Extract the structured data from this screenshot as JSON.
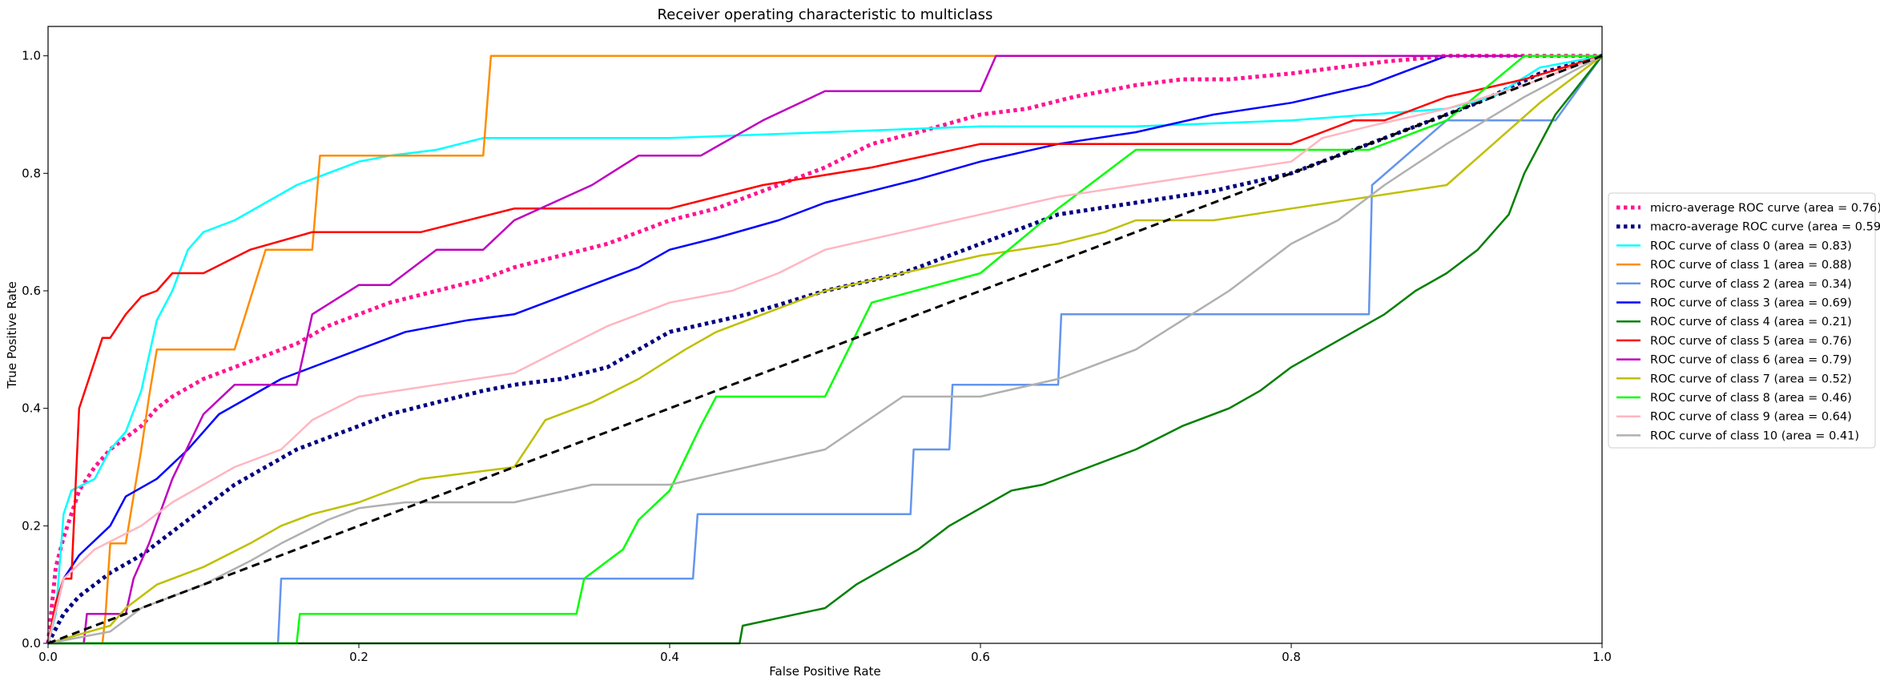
{
  "chart_data": {
    "type": "line",
    "title": "Receiver operating characteristic to multiclass",
    "xlabel": "False Positive Rate",
    "ylabel": "True Positive Rate",
    "xlim": [
      0,
      1
    ],
    "ylim": [
      0,
      1.05
    ],
    "xticks": [
      "0.0",
      "0.2",
      "0.4",
      "0.6",
      "0.8",
      "1.0"
    ],
    "yticks": [
      "0.0",
      "0.2",
      "0.4",
      "0.6",
      "0.8",
      "1.0"
    ],
    "legend_position": "right",
    "grid": false,
    "series": [
      {
        "name": "micro-average ROC curve (area = 0.76)",
        "color": "#ff1493",
        "style": "dotted",
        "width": 5,
        "x": [
          0,
          0.005,
          0.01,
          0.015,
          0.02,
          0.03,
          0.04,
          0.05,
          0.06,
          0.07,
          0.08,
          0.1,
          0.12,
          0.14,
          0.16,
          0.18,
          0.2,
          0.22,
          0.25,
          0.28,
          0.3,
          0.33,
          0.36,
          0.4,
          0.43,
          0.46,
          0.5,
          0.53,
          0.56,
          0.6,
          0.63,
          0.66,
          0.7,
          0.73,
          0.76,
          0.8,
          0.83,
          0.86,
          0.9,
          0.93,
          0.96,
          1.0
        ],
        "y": [
          0,
          0.13,
          0.18,
          0.22,
          0.26,
          0.3,
          0.33,
          0.35,
          0.37,
          0.4,
          0.42,
          0.45,
          0.47,
          0.49,
          0.51,
          0.54,
          0.56,
          0.58,
          0.6,
          0.62,
          0.64,
          0.66,
          0.68,
          0.72,
          0.74,
          0.77,
          0.81,
          0.85,
          0.87,
          0.9,
          0.91,
          0.93,
          0.95,
          0.96,
          0.96,
          0.97,
          0.98,
          0.99,
          1.0,
          1.0,
          1.0,
          1.0
        ]
      },
      {
        "name": "macro-average ROC curve (area = 0.59)",
        "color": "#000080",
        "style": "dotted",
        "width": 5,
        "x": [
          0,
          0.01,
          0.02,
          0.04,
          0.06,
          0.08,
          0.1,
          0.12,
          0.14,
          0.16,
          0.2,
          0.22,
          0.25,
          0.28,
          0.3,
          0.33,
          0.36,
          0.4,
          0.45,
          0.5,
          0.55,
          0.58,
          0.62,
          0.65,
          0.7,
          0.75,
          0.8,
          0.85,
          0.88,
          0.92,
          0.96,
          1.0
        ],
        "y": [
          0,
          0.05,
          0.08,
          0.12,
          0.15,
          0.19,
          0.23,
          0.27,
          0.3,
          0.33,
          0.37,
          0.39,
          0.41,
          0.43,
          0.44,
          0.45,
          0.47,
          0.53,
          0.56,
          0.6,
          0.63,
          0.66,
          0.7,
          0.73,
          0.75,
          0.77,
          0.8,
          0.85,
          0.88,
          0.92,
          0.97,
          1.0
        ]
      },
      {
        "name": "ROC curve of class 0 (area = 0.83)",
        "color": "#00ffff",
        "style": "solid",
        "width": 2.5,
        "x": [
          0,
          0.005,
          0.01,
          0.015,
          0.03,
          0.04,
          0.05,
          0.06,
          0.07,
          0.08,
          0.09,
          0.1,
          0.12,
          0.14,
          0.16,
          0.18,
          0.2,
          0.22,
          0.25,
          0.28,
          0.3,
          0.35,
          0.4,
          0.5,
          0.6,
          0.7,
          0.8,
          0.85,
          0.9,
          0.93,
          0.96,
          1.0
        ],
        "y": [
          0,
          0.05,
          0.22,
          0.26,
          0.28,
          0.33,
          0.36,
          0.43,
          0.55,
          0.6,
          0.67,
          0.7,
          0.72,
          0.75,
          0.78,
          0.8,
          0.82,
          0.83,
          0.84,
          0.86,
          0.86,
          0.86,
          0.86,
          0.87,
          0.88,
          0.88,
          0.89,
          0.9,
          0.91,
          0.93,
          0.98,
          1.0
        ]
      },
      {
        "name": "ROC curve of class 1 (area = 0.88)",
        "color": "#ff8c00",
        "style": "solid",
        "width": 2.5,
        "x": [
          0,
          0.035,
          0.037,
          0.04,
          0.05,
          0.06,
          0.065,
          0.07,
          0.1,
          0.12,
          0.14,
          0.17,
          0.175,
          0.2,
          0.22,
          0.25,
          0.28,
          0.285,
          0.5,
          0.7,
          0.9,
          1.0
        ],
        "y": [
          0,
          0,
          0.05,
          0.17,
          0.17,
          0.33,
          0.42,
          0.5,
          0.5,
          0.5,
          0.67,
          0.67,
          0.83,
          0.83,
          0.83,
          0.83,
          0.83,
          1.0,
          1.0,
          1.0,
          1.0,
          1.0
        ]
      },
      {
        "name": "ROC curve of class 2 (area = 0.34)",
        "color": "#6495ed",
        "style": "solid",
        "width": 2.5,
        "x": [
          0,
          0.148,
          0.15,
          0.3,
          0.415,
          0.418,
          0.54,
          0.555,
          0.557,
          0.58,
          0.582,
          0.65,
          0.652,
          0.85,
          0.852,
          0.9,
          0.95,
          0.97,
          1.0
        ],
        "y": [
          0,
          0,
          0.11,
          0.11,
          0.11,
          0.22,
          0.22,
          0.22,
          0.33,
          0.33,
          0.44,
          0.44,
          0.56,
          0.56,
          0.78,
          0.89,
          0.89,
          0.89,
          1.0
        ]
      },
      {
        "name": "ROC curve of class 3 (area = 0.69)",
        "color": "#0000ff",
        "style": "solid",
        "width": 2.5,
        "x": [
          0,
          0.01,
          0.02,
          0.04,
          0.05,
          0.07,
          0.09,
          0.11,
          0.13,
          0.15,
          0.18,
          0.2,
          0.23,
          0.27,
          0.3,
          0.32,
          0.35,
          0.38,
          0.4,
          0.43,
          0.47,
          0.5,
          0.53,
          0.56,
          0.6,
          0.65,
          0.7,
          0.75,
          0.8,
          0.85,
          0.88,
          0.9,
          1.0
        ],
        "y": [
          0,
          0.11,
          0.15,
          0.2,
          0.25,
          0.28,
          0.33,
          0.39,
          0.42,
          0.45,
          0.48,
          0.5,
          0.53,
          0.55,
          0.56,
          0.58,
          0.61,
          0.64,
          0.67,
          0.69,
          0.72,
          0.75,
          0.77,
          0.79,
          0.82,
          0.85,
          0.87,
          0.9,
          0.92,
          0.95,
          0.98,
          1.0,
          1.0
        ]
      },
      {
        "name": "ROC curve of class 4 (area = 0.21)",
        "color": "#008000",
        "style": "solid",
        "width": 2.5,
        "x": [
          0,
          0.445,
          0.447,
          0.5,
          0.52,
          0.54,
          0.56,
          0.58,
          0.6,
          0.62,
          0.64,
          0.67,
          0.7,
          0.73,
          0.76,
          0.78,
          0.8,
          0.82,
          0.84,
          0.86,
          0.88,
          0.9,
          0.92,
          0.94,
          0.95,
          0.96,
          0.97,
          1.0
        ],
        "y": [
          0,
          0,
          0.03,
          0.06,
          0.1,
          0.13,
          0.16,
          0.2,
          0.23,
          0.26,
          0.27,
          0.3,
          0.33,
          0.37,
          0.4,
          0.43,
          0.47,
          0.5,
          0.53,
          0.56,
          0.6,
          0.63,
          0.67,
          0.73,
          0.8,
          0.85,
          0.9,
          1.0
        ]
      },
      {
        "name": "ROC curve of class 5 (area = 0.76)",
        "color": "#ff0000",
        "style": "solid",
        "width": 2.5,
        "x": [
          0,
          0.005,
          0.01,
          0.015,
          0.02,
          0.03,
          0.035,
          0.04,
          0.05,
          0.06,
          0.07,
          0.08,
          0.1,
          0.13,
          0.17,
          0.21,
          0.24,
          0.3,
          0.4,
          0.46,
          0.53,
          0.6,
          0.7,
          0.8,
          0.84,
          0.86,
          0.9,
          0.95,
          1.0
        ],
        "y": [
          0,
          0.07,
          0.11,
          0.11,
          0.4,
          0.48,
          0.52,
          0.52,
          0.56,
          0.59,
          0.6,
          0.63,
          0.63,
          0.67,
          0.7,
          0.7,
          0.7,
          0.74,
          0.74,
          0.78,
          0.81,
          0.85,
          0.85,
          0.85,
          0.89,
          0.89,
          0.93,
          0.96,
          1.0
        ]
      },
      {
        "name": "ROC curve of class 6 (area = 0.79)",
        "color": "#bf00bf",
        "style": "solid",
        "width": 2.5,
        "x": [
          0,
          0.023,
          0.025,
          0.05,
          0.055,
          0.065,
          0.08,
          0.1,
          0.12,
          0.16,
          0.17,
          0.2,
          0.22,
          0.25,
          0.28,
          0.3,
          0.35,
          0.38,
          0.42,
          0.46,
          0.5,
          0.55,
          0.6,
          0.61,
          0.7,
          0.8,
          0.88,
          1.0
        ],
        "y": [
          0,
          0,
          0.05,
          0.05,
          0.11,
          0.17,
          0.28,
          0.39,
          0.44,
          0.44,
          0.56,
          0.61,
          0.61,
          0.67,
          0.67,
          0.72,
          0.78,
          0.83,
          0.83,
          0.89,
          0.94,
          0.94,
          0.94,
          1.0,
          1.0,
          1.0,
          1.0,
          1.0
        ]
      },
      {
        "name": "ROC curve of class 7 (area = 0.52)",
        "color": "#bfbf00",
        "style": "solid",
        "width": 2.5,
        "x": [
          0,
          0.04,
          0.05,
          0.07,
          0.1,
          0.13,
          0.15,
          0.17,
          0.2,
          0.24,
          0.3,
          0.31,
          0.32,
          0.35,
          0.38,
          0.41,
          0.43,
          0.46,
          0.5,
          0.55,
          0.6,
          0.65,
          0.68,
          0.7,
          0.75,
          0.8,
          0.85,
          0.9,
          0.93,
          0.96,
          1.0
        ],
        "y": [
          0,
          0.03,
          0.06,
          0.1,
          0.13,
          0.17,
          0.2,
          0.22,
          0.24,
          0.28,
          0.3,
          0.34,
          0.38,
          0.41,
          0.45,
          0.5,
          0.53,
          0.56,
          0.6,
          0.63,
          0.66,
          0.68,
          0.7,
          0.72,
          0.72,
          0.74,
          0.76,
          0.78,
          0.85,
          0.92,
          1.0
        ]
      },
      {
        "name": "ROC curve of class 8 (area = 0.46)",
        "color": "#00ff00",
        "style": "solid",
        "width": 2.5,
        "x": [
          0,
          0.16,
          0.162,
          0.34,
          0.345,
          0.37,
          0.38,
          0.4,
          0.42,
          0.43,
          0.5,
          0.53,
          0.6,
          0.65,
          0.7,
          0.8,
          0.85,
          0.9,
          0.95,
          1.0
        ],
        "y": [
          0,
          0,
          0.05,
          0.05,
          0.11,
          0.16,
          0.21,
          0.26,
          0.37,
          0.42,
          0.42,
          0.58,
          0.63,
          0.74,
          0.84,
          0.84,
          0.84,
          0.89,
          1.0,
          1.0
        ]
      },
      {
        "name": "ROC curve of class 9 (area = 0.64)",
        "color": "#ffb6c1",
        "style": "solid",
        "width": 2.5,
        "x": [
          0,
          0.01,
          0.03,
          0.06,
          0.08,
          0.1,
          0.12,
          0.15,
          0.17,
          0.2,
          0.25,
          0.3,
          0.33,
          0.36,
          0.4,
          0.44,
          0.47,
          0.5,
          0.55,
          0.6,
          0.65,
          0.7,
          0.75,
          0.8,
          0.82,
          0.85,
          0.9,
          0.95,
          1.0
        ],
        "y": [
          0,
          0.11,
          0.16,
          0.2,
          0.24,
          0.27,
          0.3,
          0.33,
          0.38,
          0.42,
          0.44,
          0.46,
          0.5,
          0.54,
          0.58,
          0.6,
          0.63,
          0.67,
          0.7,
          0.73,
          0.76,
          0.78,
          0.8,
          0.82,
          0.86,
          0.88,
          0.91,
          0.95,
          1.0
        ]
      },
      {
        "name": "ROC curve of class 10 (area = 0.41)",
        "color": "#b0b0b0",
        "style": "solid",
        "width": 2.5,
        "x": [
          0,
          0.04,
          0.06,
          0.1,
          0.13,
          0.15,
          0.18,
          0.2,
          0.23,
          0.26,
          0.3,
          0.35,
          0.4,
          0.45,
          0.5,
          0.55,
          0.6,
          0.65,
          0.7,
          0.73,
          0.76,
          0.8,
          0.83,
          0.86,
          0.9,
          0.95,
          1.0
        ],
        "y": [
          0,
          0.02,
          0.06,
          0.1,
          0.14,
          0.17,
          0.21,
          0.23,
          0.24,
          0.24,
          0.24,
          0.27,
          0.27,
          0.3,
          0.33,
          0.42,
          0.42,
          0.45,
          0.5,
          0.55,
          0.6,
          0.68,
          0.72,
          0.78,
          0.85,
          0.93,
          1.0
        ]
      }
    ],
    "reference_line": {
      "x": [
        0,
        1
      ],
      "y": [
        0,
        1
      ],
      "color": "#000000",
      "style": "dashed",
      "width": 3
    }
  }
}
